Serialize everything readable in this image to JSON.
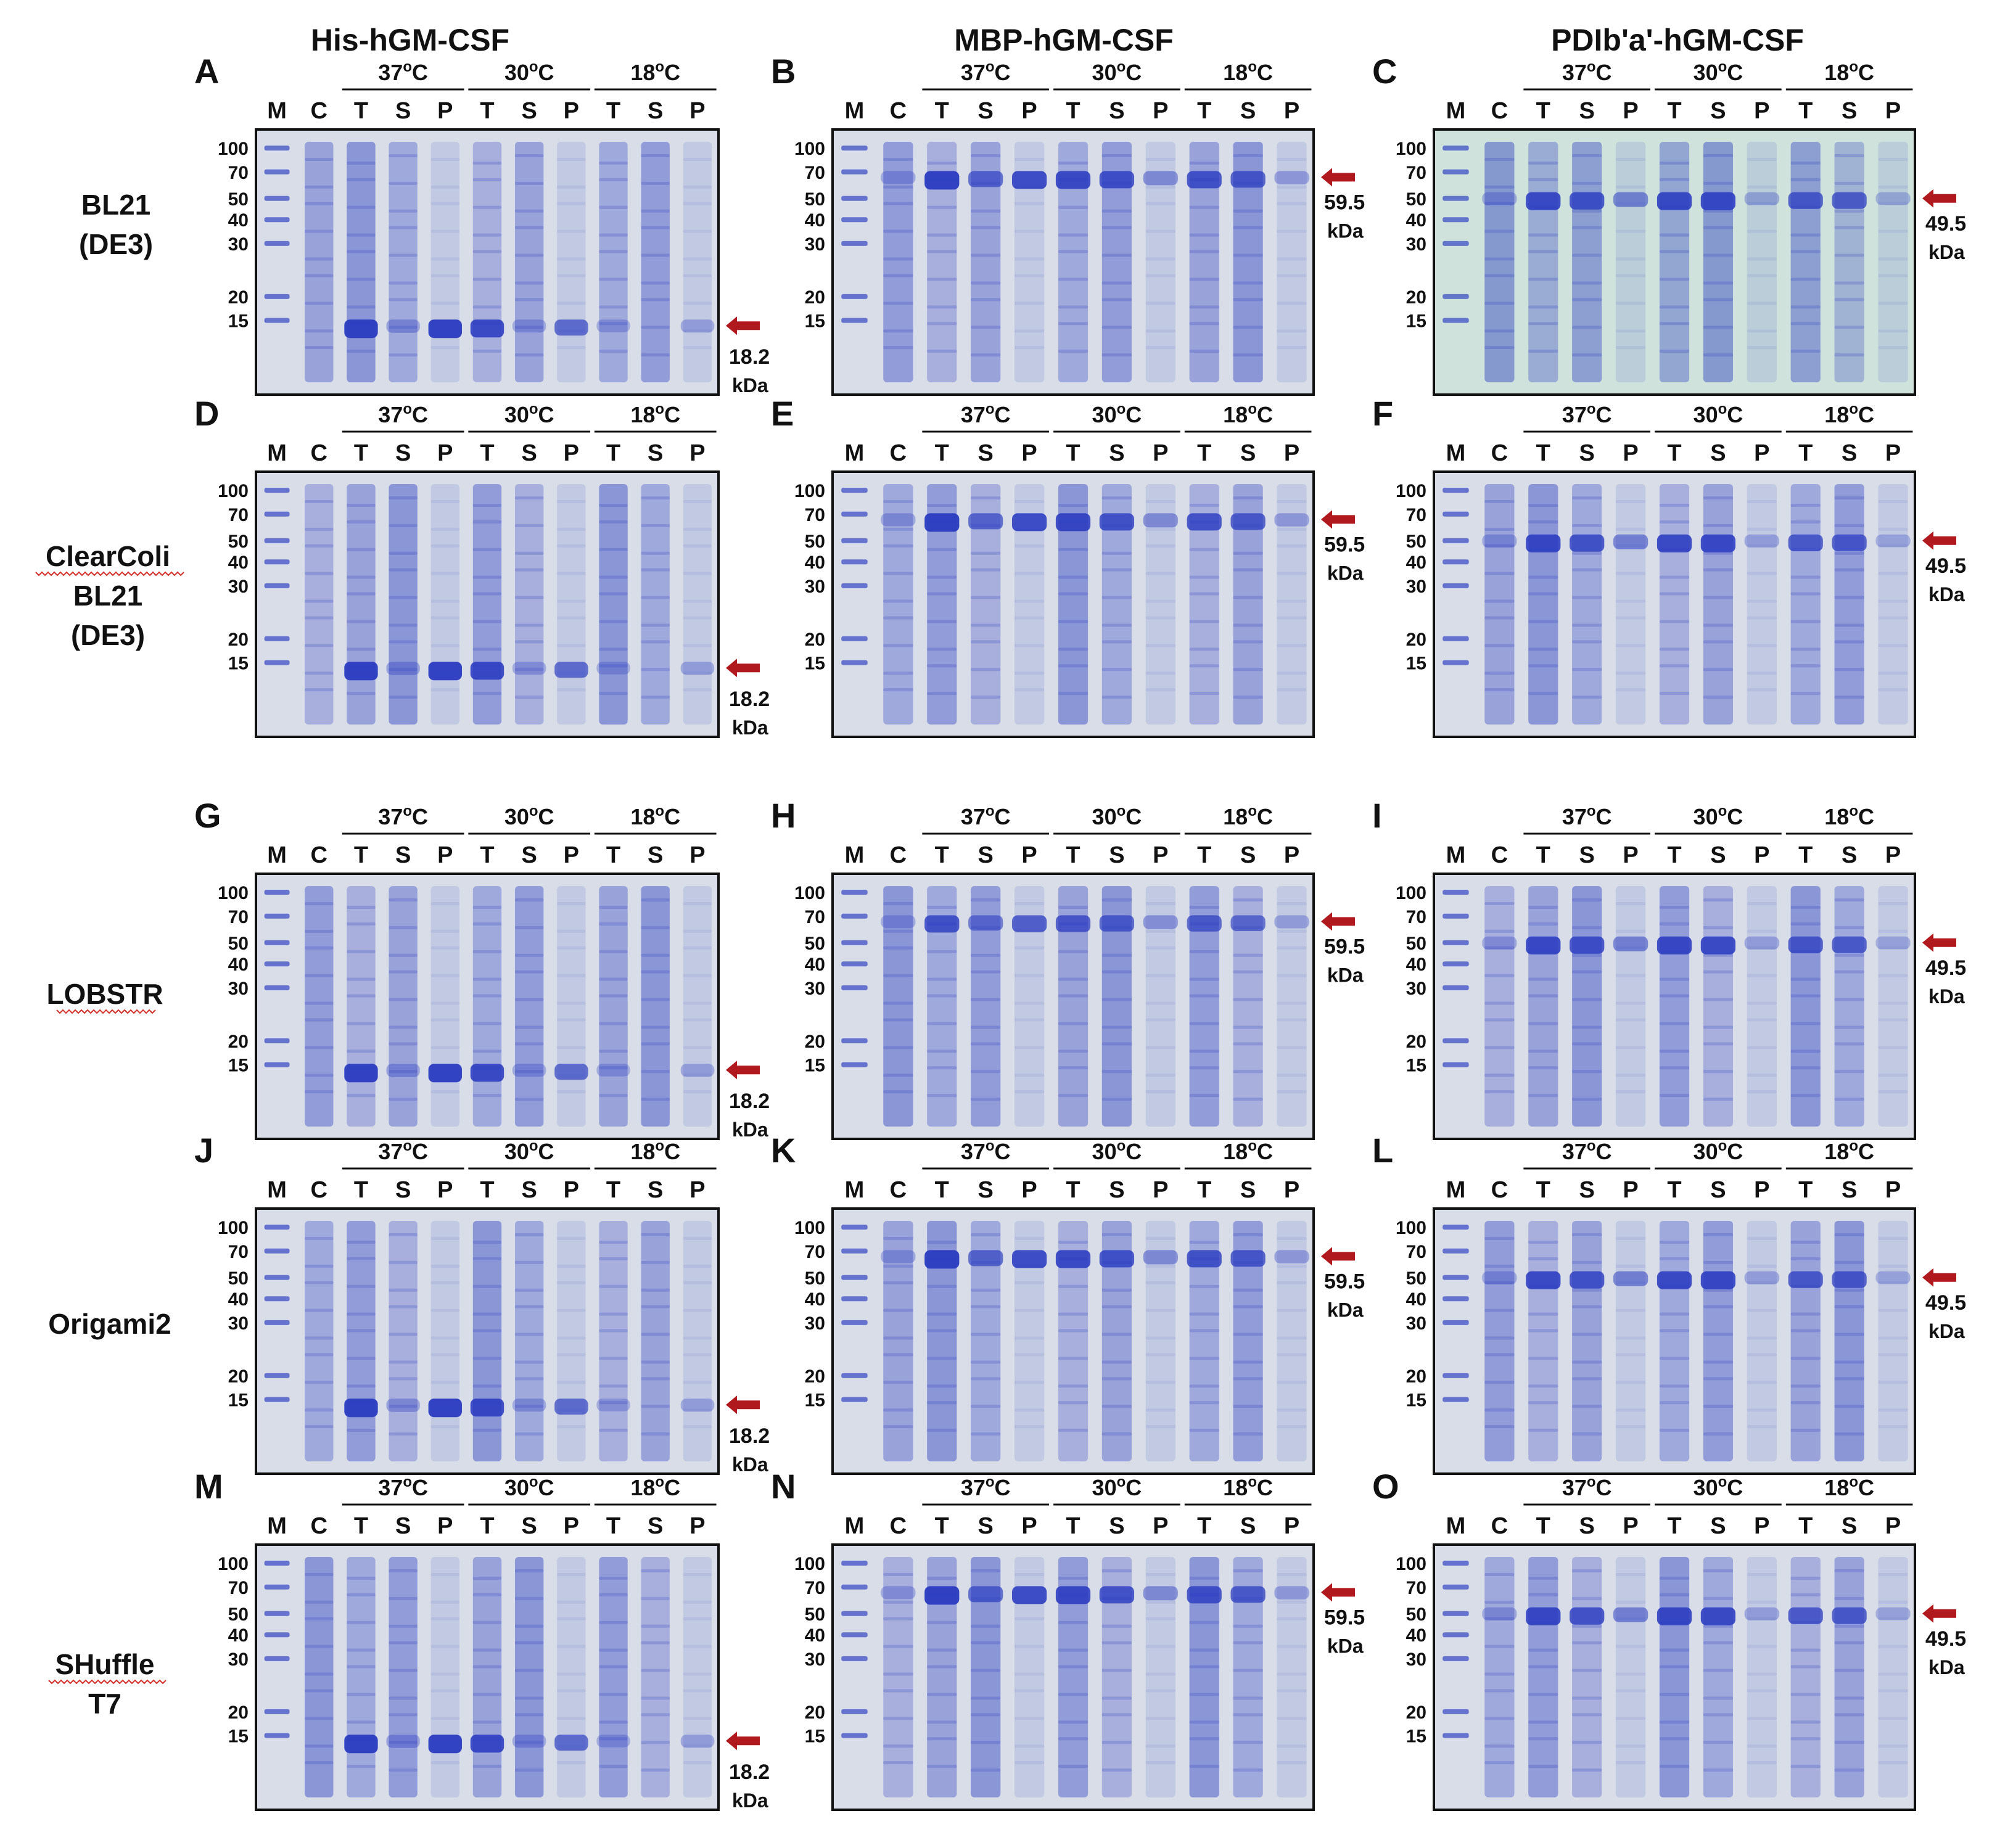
{
  "figure": {
    "column_titles": [
      "His-hGM-CSF",
      "MBP-hGM-CSF",
      "PDIb'a'-hGM-CSF"
    ],
    "row_labels": [
      [
        "BL21",
        "(DE3)"
      ],
      [
        "ClearColi",
        "BL21",
        "(DE3)"
      ],
      [
        "LOBSTR"
      ],
      [
        "Origami2"
      ],
      [
        "SHuffle",
        "T7"
      ]
    ],
    "panel_letters": [
      "A",
      "B",
      "C",
      "D",
      "E",
      "F",
      "G",
      "H",
      "I",
      "J",
      "K",
      "L",
      "M",
      "N",
      "O"
    ],
    "temperature_groups": [
      "37oC",
      "30oC",
      "18oC"
    ],
    "lane_labels": [
      "M",
      "C",
      "T",
      "S",
      "P",
      "T",
      "S",
      "P",
      "T",
      "S",
      "P"
    ],
    "marker_ladder_kda": [
      "100",
      "70",
      "50",
      "40",
      "30",
      "20",
      "15"
    ],
    "protein_sizes": [
      {
        "value": "18.2",
        "unit": "kDa"
      },
      {
        "value": "59.5",
        "unit": "kDa"
      },
      {
        "value": "49.5",
        "unit": "kDa"
      }
    ],
    "colors": {
      "arrow": "#b0191e",
      "band": "#2a3bc0",
      "gel_bg_default": "#d8dde8",
      "gel_bg_tinted": "#cfe2dc",
      "gel_border": "#111111"
    }
  }
}
